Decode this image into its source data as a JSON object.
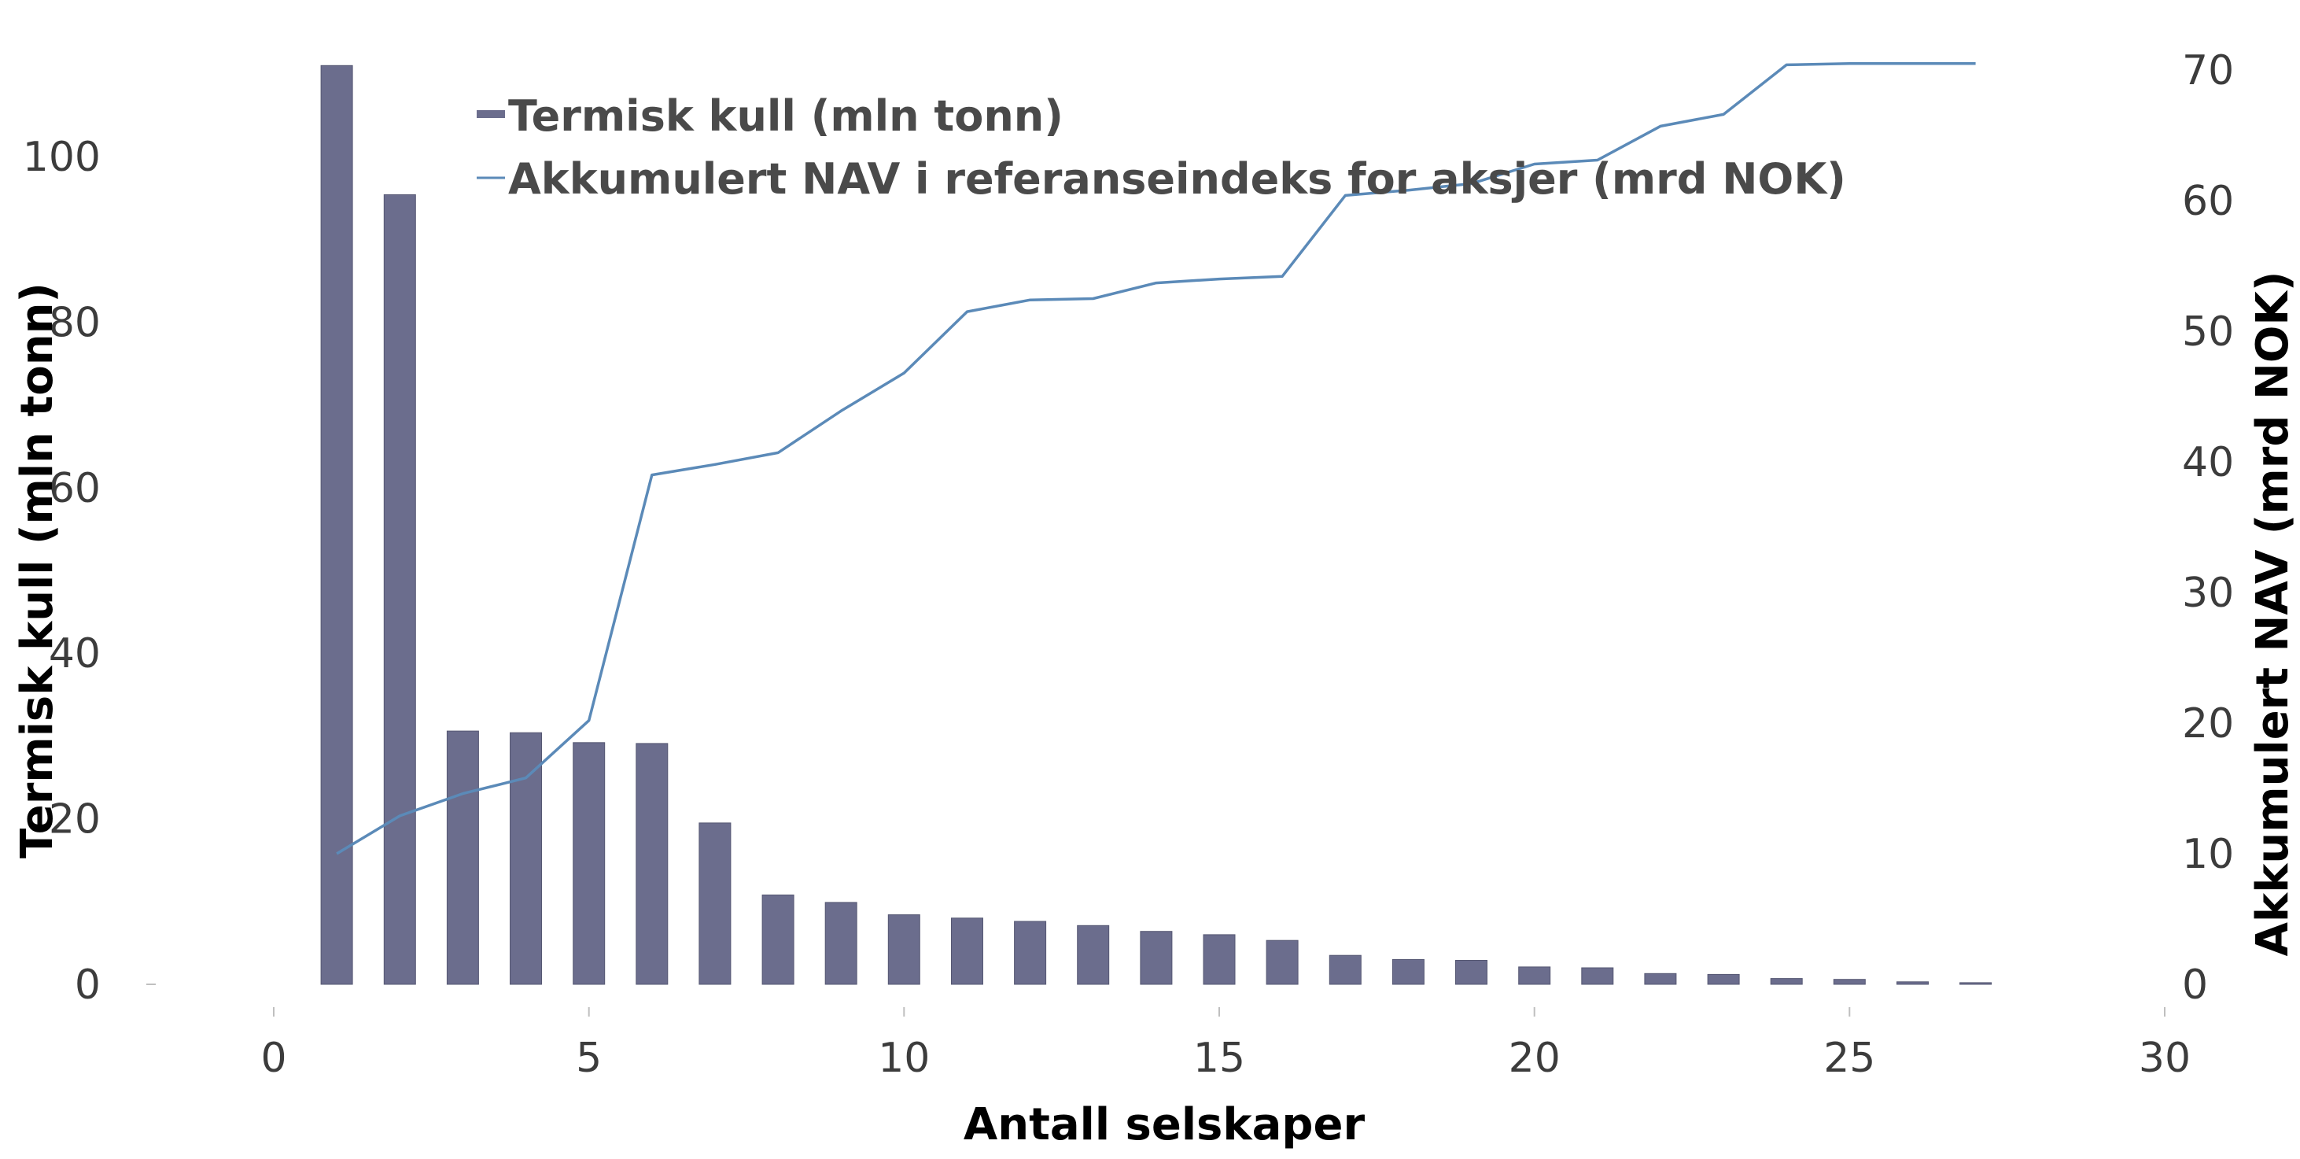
{
  "chart_data": {
    "type": "bar",
    "xlabel": "Antall selskaper",
    "ylabel": "Termisk kull (mln tonn)",
    "y2label": "Akkumulert NAV (mrd NOK)",
    "xlim": [
      0,
      30
    ],
    "ylim": [
      0,
      111
    ],
    "y2lim": [
      0,
      70.5
    ],
    "x_ticks": [
      0,
      5,
      10,
      15,
      20,
      25,
      30
    ],
    "y_ticks": [
      0,
      20,
      40,
      60,
      80,
      100
    ],
    "y2_ticks": [
      0,
      10,
      20,
      30,
      40,
      50,
      60,
      70
    ],
    "grid": false,
    "legend_position": "top-center",
    "series": [
      {
        "name": "Termisk kull (mln tonn)",
        "type": "bar",
        "axis": "left",
        "color": "#6b6d8d",
        "x": [
          1,
          2,
          3,
          4,
          5,
          6,
          7,
          8,
          9,
          10,
          11,
          12,
          13,
          14,
          15,
          16,
          17,
          18,
          19,
          20,
          21,
          22,
          23,
          24,
          25,
          26,
          27
        ],
        "values": [
          111,
          95.4,
          30.6,
          30.4,
          29.2,
          29.1,
          19.5,
          10.8,
          9.9,
          8.4,
          8.0,
          7.6,
          7.1,
          6.4,
          6.0,
          5.3,
          3.5,
          3.0,
          2.9,
          2.1,
          2.0,
          1.3,
          1.2,
          0.7,
          0.6,
          0.3,
          0.2
        ]
      },
      {
        "name": "Akkumulert NAV i referanseindeks for aksjer (mrd NOK)",
        "type": "line",
        "axis": "right",
        "color": "#5b8ab8",
        "x": [
          1,
          2,
          3,
          4,
          5,
          6,
          7,
          8,
          9,
          10,
          11,
          12,
          13,
          14,
          15,
          16,
          17,
          18,
          19,
          20,
          21,
          22,
          23,
          24,
          25,
          26,
          27
        ],
        "values": [
          10.0,
          12.9,
          14.6,
          15.8,
          20.2,
          39.0,
          39.8,
          40.7,
          43.9,
          46.8,
          51.5,
          52.4,
          52.5,
          53.7,
          54.0,
          54.2,
          60.4,
          60.8,
          61.3,
          62.8,
          63.1,
          65.7,
          66.6,
          70.4,
          70.5,
          70.5,
          70.5
        ]
      }
    ]
  }
}
